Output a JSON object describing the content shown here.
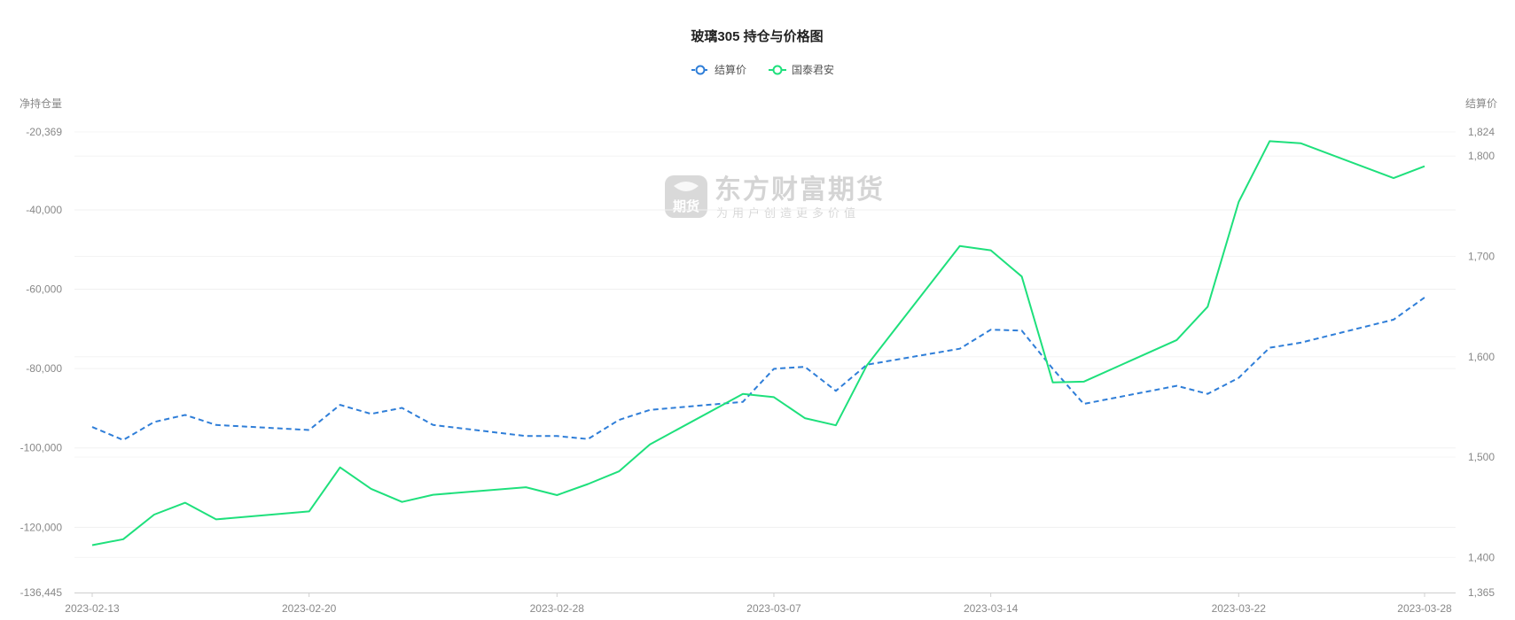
{
  "chart_data": {
    "type": "line",
    "title": "玻璃305 持仓与价格图",
    "watermark": {
      "brand": "东方财富期货",
      "slogan": "为用户创造更多价值",
      "logo_text": "期货"
    },
    "legend": {
      "position": "top-center",
      "items": [
        "结算价",
        "国泰君安"
      ]
    },
    "left_axis": {
      "name": "净持仓量",
      "min": -136445,
      "max": -20369,
      "ticks": [
        "-20,369",
        "-40,000",
        "-60,000",
        "-80,000",
        "-100,000",
        "-120,000",
        "-136,445"
      ]
    },
    "right_axis": {
      "name": "结算价",
      "min": 1365,
      "max": 1824,
      "ticks": [
        "1,824",
        "1,800",
        "1,700",
        "1,600",
        "1,500",
        "1,400",
        "1,365"
      ]
    },
    "x_tick_labels": [
      "2023-02-13",
      "2023-02-20",
      "2023-02-28",
      "2023-03-07",
      "2023-03-14",
      "2023-03-22",
      "2023-03-28"
    ],
    "x": [
      "2023-02-13",
      "2023-02-14",
      "2023-02-15",
      "2023-02-16",
      "2023-02-17",
      "2023-02-20",
      "2023-02-21",
      "2023-02-22",
      "2023-02-23",
      "2023-02-24",
      "2023-02-27",
      "2023-02-28",
      "2023-03-01",
      "2023-03-02",
      "2023-03-03",
      "2023-03-06",
      "2023-03-07",
      "2023-03-08",
      "2023-03-09",
      "2023-03-10",
      "2023-03-13",
      "2023-03-14",
      "2023-03-15",
      "2023-03-16",
      "2023-03-17",
      "2023-03-20",
      "2023-03-21",
      "2023-03-22",
      "2023-03-23",
      "2023-03-24",
      "2023-03-27",
      "2023-03-28"
    ],
    "series": [
      {
        "name": "结算价",
        "axis": "right",
        "style": "dashed",
        "color": "#2f7ed8",
        "values": [
          1530,
          1517,
          1535,
          1542,
          1532,
          1527,
          1552,
          1543,
          1549,
          1532,
          1521,
          1521,
          1518,
          1537,
          1547,
          1555,
          1588,
          1590,
          1566,
          1592,
          1608,
          1627,
          1626,
          1588,
          1553,
          1571,
          1563,
          1579,
          1609,
          1614,
          1637,
          1659
        ]
      },
      {
        "name": "国泰君安",
        "axis": "left",
        "style": "solid",
        "color": "#1ee07c",
        "values": [
          -124500,
          -123000,
          -116800,
          -113800,
          -118000,
          -116000,
          -104900,
          -110300,
          -113600,
          -111800,
          -109900,
          -111900,
          -109100,
          -105900,
          -99100,
          -86400,
          -87200,
          -92500,
          -94300,
          -79200,
          -49100,
          -50200,
          -56800,
          -83500,
          -83300,
          -72800,
          -64400,
          -38000,
          -22700,
          -23200,
          -32000,
          -29000
        ]
      }
    ]
  }
}
